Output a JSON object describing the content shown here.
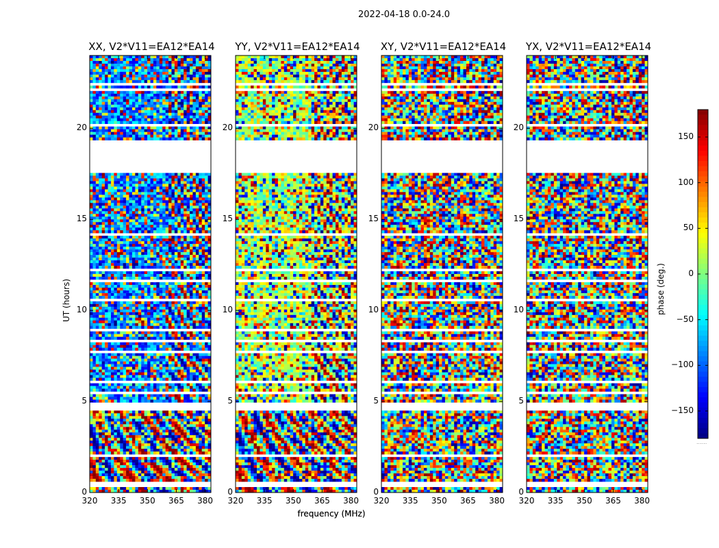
{
  "figure_title": "2022-04-18 0.0-24.0",
  "colors": {
    "background": "#ffffff",
    "jet_dark_blue": "#00007f",
    "jet_dark_red": "#7f0000"
  },
  "chart_data": [
    {
      "type": "heatmap",
      "title": "XX, V2*V11=EA12*EA14",
      "xlabel": "frequency (MHz)",
      "ylabel": "UT (hours)",
      "xlim": [
        320,
        383
      ],
      "ylim": [
        0,
        24
      ],
      "xticks": [
        320,
        335,
        350,
        365,
        380
      ],
      "yticks": [
        0,
        5,
        10,
        15,
        20
      ],
      "colormap": "jet",
      "color_range": [
        -180,
        180
      ],
      "baseline": "mid"
    },
    {
      "type": "heatmap",
      "title": "YY, V2*V11=EA12*EA14",
      "xlabel": "frequency (MHz)",
      "ylabel": "",
      "xlim": [
        320,
        383
      ],
      "ylim": [
        0,
        24
      ],
      "xticks": [
        320,
        335,
        350,
        365,
        380
      ],
      "yticks": [
        0,
        5,
        10,
        15,
        20
      ],
      "colormap": "jet",
      "color_range": [
        -180,
        180
      ],
      "baseline": "positive"
    },
    {
      "type": "heatmap",
      "title": "XY, V2*V11=EA12*EA14",
      "xlabel": "",
      "ylabel": "",
      "xlim": [
        320,
        383
      ],
      "ylim": [
        0,
        24
      ],
      "xticks": [
        320,
        335,
        350,
        365,
        380
      ],
      "yticks": [
        0,
        5,
        10,
        15,
        20
      ],
      "colormap": "jet",
      "color_range": [
        -180,
        180
      ],
      "baseline": "noise"
    },
    {
      "type": "heatmap",
      "title": "YX, V2*V11=EA12*EA14",
      "xlabel": "",
      "ylabel": "",
      "xlim": [
        320,
        383
      ],
      "ylim": [
        0,
        24
      ],
      "xticks": [
        320,
        335,
        350,
        365,
        380
      ],
      "yticks": [
        0,
        5,
        10,
        15,
        20
      ],
      "colormap": "jet",
      "color_range": [
        -180,
        180
      ],
      "baseline": "noise"
    }
  ],
  "colorbar": {
    "label": "phase (deg.)",
    "range": [
      -180,
      180
    ],
    "ticks": [
      -150,
      -100,
      -50,
      0,
      50,
      100,
      150
    ],
    "tick_labels": [
      "−150",
      "−100",
      "−50",
      "0",
      "50",
      "100",
      "150"
    ],
    "footer": "......"
  },
  "flagged_ut_ranges": [
    [
      0.28,
      0.42
    ],
    [
      0.48,
      0.58
    ],
    [
      1.88,
      1.96
    ],
    [
      2.02,
      2.08
    ],
    [
      3.55,
      3.65
    ],
    [
      4.55,
      4.62
    ],
    [
      4.7,
      4.78
    ],
    [
      4.85,
      4.92
    ],
    [
      5.05,
      5.12
    ],
    [
      5.45,
      5.5
    ],
    [
      6.05,
      6.1
    ],
    [
      7.3,
      7.35
    ],
    [
      7.72,
      7.8
    ],
    [
      8.3,
      8.35
    ],
    [
      8.9,
      8.95
    ],
    [
      9.45,
      9.5
    ],
    [
      9.85,
      9.9
    ],
    [
      10.3,
      10.35
    ],
    [
      10.55,
      10.6
    ],
    [
      11.6,
      11.7
    ],
    [
      12.2,
      12.25
    ],
    [
      13.05,
      13.1
    ],
    [
      14.1,
      14.2
    ],
    [
      14.65,
      14.7
    ],
    [
      15.15,
      15.2
    ],
    [
      15.6,
      15.65
    ],
    [
      15.9,
      15.95
    ],
    [
      16.35,
      16.4
    ],
    [
      16.8,
      16.85
    ],
    [
      17.1,
      17.15
    ],
    [
      17.5,
      19.3
    ],
    [
      20.1,
      20.2
    ],
    [
      20.5,
      20.6
    ],
    [
      20.85,
      20.9
    ],
    [
      22.1,
      22.2
    ],
    [
      22.4,
      22.5
    ],
    [
      22.6,
      22.65
    ],
    [
      23.2,
      23.3
    ]
  ]
}
